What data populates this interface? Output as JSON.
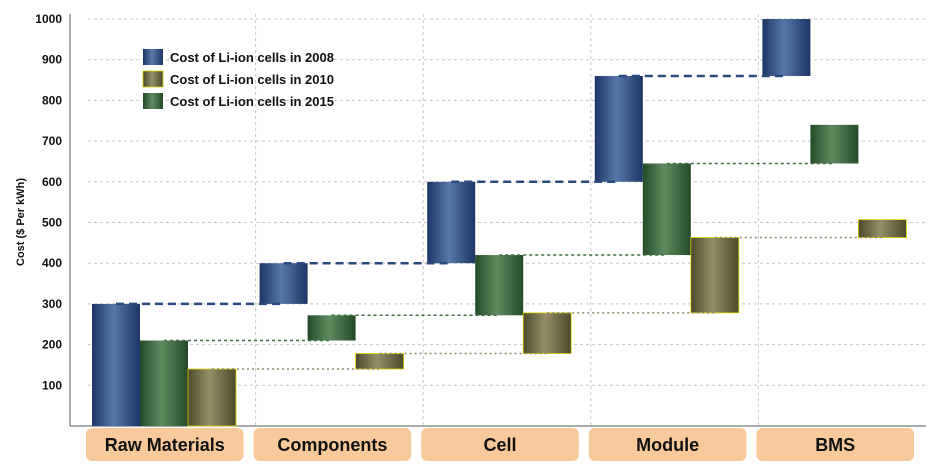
{
  "chart_data": {
    "type": "bar",
    "subtype": "waterfall",
    "ylabel": "Cost ($ Per kWh)",
    "ylim": [
      0,
      1000
    ],
    "yticks": [
      100,
      200,
      300,
      400,
      500,
      600,
      700,
      800,
      900,
      1000
    ],
    "grid": true,
    "legend_position": "top-left",
    "categories": [
      "Raw Materials",
      "Components",
      "Cell",
      "Module",
      "BMS"
    ],
    "series": [
      {
        "name": "Cost of Li-ion cells in 2008",
        "color": "#2e4f85",
        "segments": [
          [
            0,
            300
          ],
          [
            300,
            400
          ],
          [
            400,
            600
          ],
          [
            600,
            860
          ],
          [
            860,
            1000
          ]
        ]
      },
      {
        "name": "Cost of Li-ion cells in 2010",
        "color": "#6b6845",
        "segments": [
          [
            0,
            140
          ],
          [
            140,
            178
          ],
          [
            178,
            278
          ],
          [
            278,
            463
          ],
          [
            463,
            507
          ]
        ]
      },
      {
        "name": "Cost of Li-ion cells in 2015",
        "color": "#3d6a40",
        "segments": [
          [
            0,
            210
          ],
          [
            210,
            272
          ],
          [
            272,
            420
          ],
          [
            420,
            645
          ],
          [
            645,
            740
          ]
        ]
      }
    ]
  }
}
